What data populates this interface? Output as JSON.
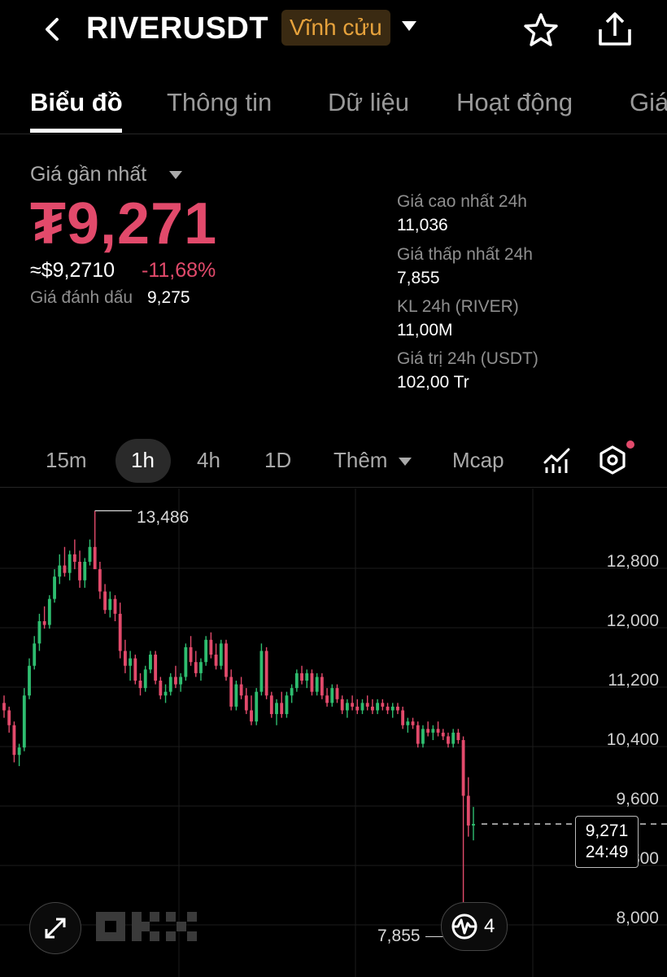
{
  "header": {
    "symbol": "RIVERUSDT",
    "contract_type": "Vĩnh cửu",
    "icons": [
      "chevron-left-icon",
      "caret-down-icon",
      "star-icon",
      "share-icon"
    ]
  },
  "tabs": [
    {
      "label": "Biểu đồ",
      "active": true
    },
    {
      "label": "Thông tin",
      "active": false
    },
    {
      "label": "Dữ liệu",
      "active": false
    },
    {
      "label": "Hoạt động",
      "active": false
    },
    {
      "label": "Giá",
      "active": false
    }
  ],
  "price": {
    "latest_label": "Giá gần nhất",
    "latest": "₮9,271",
    "usd_equiv": "≈$9,2710",
    "change": "-11,68%",
    "mark_label": "Giá đánh dấu",
    "mark_value": "9,275",
    "accent_color": "#e24a6b"
  },
  "stats": [
    {
      "label": "Giá cao nhất 24h",
      "value": "11,036"
    },
    {
      "label": "Giá thấp nhất 24h",
      "value": "7,855"
    },
    {
      "label": "KL 24h (RIVER)",
      "value": "11,00M"
    },
    {
      "label": "Giá trị 24h (USDT)",
      "value": "102,00 Tr"
    }
  ],
  "timeframes": [
    {
      "label": "15m",
      "active": false
    },
    {
      "label": "1h",
      "active": true
    },
    {
      "label": "4h",
      "active": false
    },
    {
      "label": "1D",
      "active": false
    },
    {
      "label": "Thêm",
      "active": false
    },
    {
      "label": "Mcap",
      "active": false
    }
  ],
  "chart": {
    "y_ticks": [
      "12,800",
      "12,000",
      "11,200",
      "10,400",
      "9,600",
      "8,800",
      "8,000"
    ],
    "high_marker": "13,486",
    "low_marker": "7,855",
    "current_price": "9,271",
    "countdown": "24:49",
    "fab_count": "4",
    "watermark": "OKX",
    "up_color": "#2ebd6f",
    "down_color": "#e24a6b"
  },
  "chart_data": {
    "type": "candlestick",
    "y_axis": {
      "ticks": [
        12800,
        12000,
        11200,
        10400,
        9600,
        8800,
        8000
      ]
    },
    "series": [
      {
        "o": 10900,
        "h": 11000,
        "l": 10700,
        "c": 10800
      },
      {
        "o": 10800,
        "h": 10850,
        "l": 10500,
        "c": 10600
      },
      {
        "o": 10600,
        "h": 10650,
        "l": 10100,
        "c": 10200
      },
      {
        "o": 10200,
        "h": 10350,
        "l": 10050,
        "c": 10300
      },
      {
        "o": 10300,
        "h": 11100,
        "l": 10250,
        "c": 11000
      },
      {
        "o": 11000,
        "h": 11500,
        "l": 10950,
        "c": 11400
      },
      {
        "o": 11400,
        "h": 11800,
        "l": 11350,
        "c": 11700
      },
      {
        "o": 11700,
        "h": 12100,
        "l": 11600,
        "c": 12000
      },
      {
        "o": 12000,
        "h": 12200,
        "l": 11900,
        "c": 11950
      },
      {
        "o": 11950,
        "h": 12350,
        "l": 11900,
        "c": 12300
      },
      {
        "o": 12300,
        "h": 12700,
        "l": 12250,
        "c": 12600
      },
      {
        "o": 12600,
        "h": 12900,
        "l": 12500,
        "c": 12750
      },
      {
        "o": 12750,
        "h": 13000,
        "l": 12600,
        "c": 12650
      },
      {
        "o": 12650,
        "h": 12950,
        "l": 12550,
        "c": 12900
      },
      {
        "o": 12900,
        "h": 13100,
        "l": 12700,
        "c": 12800
      },
      {
        "o": 12800,
        "h": 12950,
        "l": 12450,
        "c": 12550
      },
      {
        "o": 12550,
        "h": 12850,
        "l": 12450,
        "c": 12800
      },
      {
        "o": 12800,
        "h": 13100,
        "l": 12750,
        "c": 13000
      },
      {
        "o": 13000,
        "h": 13486,
        "l": 12950,
        "c": 12700
      },
      {
        "o": 12700,
        "h": 12800,
        "l": 12300,
        "c": 12400
      },
      {
        "o": 12400,
        "h": 12500,
        "l": 12100,
        "c": 12150
      },
      {
        "o": 12150,
        "h": 12400,
        "l": 12050,
        "c": 12300
      },
      {
        "o": 12300,
        "h": 12350,
        "l": 12000,
        "c": 12100
      },
      {
        "o": 12100,
        "h": 12250,
        "l": 11500,
        "c": 11600
      },
      {
        "o": 11600,
        "h": 11750,
        "l": 11300,
        "c": 11400
      },
      {
        "o": 11400,
        "h": 11600,
        "l": 11200,
        "c": 11500
      },
      {
        "o": 11500,
        "h": 11550,
        "l": 11150,
        "c": 11200
      },
      {
        "o": 11200,
        "h": 11300,
        "l": 11000,
        "c": 11100
      },
      {
        "o": 11100,
        "h": 11400,
        "l": 11050,
        "c": 11350
      },
      {
        "o": 11350,
        "h": 11600,
        "l": 11300,
        "c": 11550
      },
      {
        "o": 11550,
        "h": 11600,
        "l": 11150,
        "c": 11200
      },
      {
        "o": 11200,
        "h": 11250,
        "l": 10950,
        "c": 11000
      },
      {
        "o": 11000,
        "h": 11150,
        "l": 10900,
        "c": 11050
      },
      {
        "o": 11050,
        "h": 11300,
        "l": 11000,
        "c": 11250
      },
      {
        "o": 11250,
        "h": 11400,
        "l": 11100,
        "c": 11150
      },
      {
        "o": 11150,
        "h": 11300,
        "l": 11050,
        "c": 11250
      },
      {
        "o": 11250,
        "h": 11700,
        "l": 11200,
        "c": 11650
      },
      {
        "o": 11650,
        "h": 11800,
        "l": 11400,
        "c": 11450
      },
      {
        "o": 11450,
        "h": 11600,
        "l": 11250,
        "c": 11300
      },
      {
        "o": 11300,
        "h": 11500,
        "l": 11200,
        "c": 11450
      },
      {
        "o": 11450,
        "h": 11800,
        "l": 11400,
        "c": 11750
      },
      {
        "o": 11750,
        "h": 11850,
        "l": 11500,
        "c": 11550
      },
      {
        "o": 11550,
        "h": 11700,
        "l": 11350,
        "c": 11400
      },
      {
        "o": 11400,
        "h": 11750,
        "l": 11350,
        "c": 11700
      },
      {
        "o": 11700,
        "h": 11750,
        "l": 11200,
        "c": 11250
      },
      {
        "o": 11250,
        "h": 11350,
        "l": 10800,
        "c": 10850
      },
      {
        "o": 10850,
        "h": 11200,
        "l": 10800,
        "c": 11150
      },
      {
        "o": 11150,
        "h": 11250,
        "l": 10950,
        "c": 11000
      },
      {
        "o": 11000,
        "h": 11100,
        "l": 10750,
        "c": 10800
      },
      {
        "o": 10800,
        "h": 11000,
        "l": 10600,
        "c": 10650
      },
      {
        "o": 10650,
        "h": 11100,
        "l": 10600,
        "c": 11050
      },
      {
        "o": 11050,
        "h": 11700,
        "l": 11000,
        "c": 11600
      },
      {
        "o": 11600,
        "h": 11650,
        "l": 10950,
        "c": 11000
      },
      {
        "o": 11000,
        "h": 11050,
        "l": 10700,
        "c": 10750
      },
      {
        "o": 10750,
        "h": 10950,
        "l": 10600,
        "c": 10900
      },
      {
        "o": 10900,
        "h": 11050,
        "l": 10700,
        "c": 10750
      },
      {
        "o": 10750,
        "h": 11050,
        "l": 10700,
        "c": 11000
      },
      {
        "o": 11000,
        "h": 11150,
        "l": 10900,
        "c": 11100
      },
      {
        "o": 11100,
        "h": 11350,
        "l": 11050,
        "c": 11300
      },
      {
        "o": 11300,
        "h": 11400,
        "l": 11150,
        "c": 11200
      },
      {
        "o": 11200,
        "h": 11350,
        "l": 11100,
        "c": 11300
      },
      {
        "o": 11300,
        "h": 11350,
        "l": 11000,
        "c": 11050
      },
      {
        "o": 11050,
        "h": 11300,
        "l": 11000,
        "c": 11250
      },
      {
        "o": 11250,
        "h": 11300,
        "l": 10950,
        "c": 11000
      },
      {
        "o": 11000,
        "h": 11100,
        "l": 10850,
        "c": 10900
      },
      {
        "o": 10900,
        "h": 11150,
        "l": 10850,
        "c": 11100
      },
      {
        "o": 11100,
        "h": 11150,
        "l": 10900,
        "c": 10950
      },
      {
        "o": 10950,
        "h": 11000,
        "l": 10750,
        "c": 10800
      },
      {
        "o": 10800,
        "h": 10950,
        "l": 10700,
        "c": 10900
      },
      {
        "o": 10900,
        "h": 11000,
        "l": 10800,
        "c": 10850
      },
      {
        "o": 10850,
        "h": 10950,
        "l": 10750,
        "c": 10800
      },
      {
        "o": 10800,
        "h": 10950,
        "l": 10750,
        "c": 10900
      },
      {
        "o": 10900,
        "h": 11000,
        "l": 10800,
        "c": 10850
      },
      {
        "o": 10850,
        "h": 10950,
        "l": 10750,
        "c": 10800
      },
      {
        "o": 10800,
        "h": 10950,
        "l": 10750,
        "c": 10900
      },
      {
        "o": 10900,
        "h": 10950,
        "l": 10800,
        "c": 10850
      },
      {
        "o": 10850,
        "h": 10900,
        "l": 10750,
        "c": 10800
      },
      {
        "o": 10800,
        "h": 10900,
        "l": 10700,
        "c": 10850
      },
      {
        "o": 10850,
        "h": 10900,
        "l": 10750,
        "c": 10800
      },
      {
        "o": 10800,
        "h": 10850,
        "l": 10550,
        "c": 10600
      },
      {
        "o": 10600,
        "h": 10700,
        "l": 10500,
        "c": 10650
      },
      {
        "o": 10650,
        "h": 10700,
        "l": 10550,
        "c": 10600
      },
      {
        "o": 10600,
        "h": 10650,
        "l": 10300,
        "c": 10350
      },
      {
        "o": 10350,
        "h": 10600,
        "l": 10300,
        "c": 10550
      },
      {
        "o": 10550,
        "h": 10650,
        "l": 10450,
        "c": 10500
      },
      {
        "o": 10500,
        "h": 10600,
        "l": 10400,
        "c": 10550
      },
      {
        "o": 10550,
        "h": 10650,
        "l": 10450,
        "c": 10500
      },
      {
        "o": 10500,
        "h": 10550,
        "l": 10400,
        "c": 10450
      },
      {
        "o": 10450,
        "h": 10500,
        "l": 10300,
        "c": 10350
      },
      {
        "o": 10350,
        "h": 10550,
        "l": 10300,
        "c": 10500
      },
      {
        "o": 10500,
        "h": 10550,
        "l": 10350,
        "c": 10400
      },
      {
        "o": 10400,
        "h": 10450,
        "l": 7855,
        "c": 9650
      },
      {
        "o": 9650,
        "h": 9900,
        "l": 9100,
        "c": 9250
      },
      {
        "o": 9250,
        "h": 9500,
        "l": 9050,
        "c": 9271
      }
    ]
  }
}
